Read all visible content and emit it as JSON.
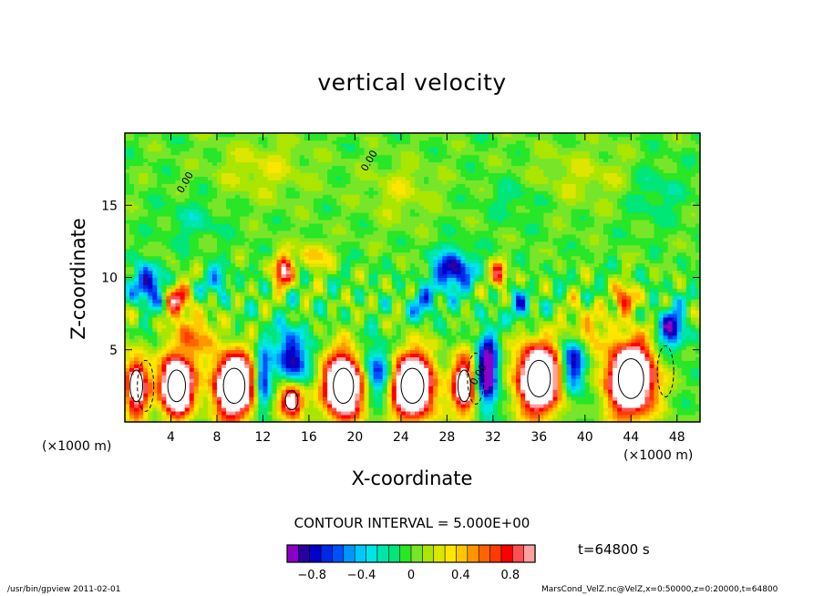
{
  "figure": {
    "title": "vertical velocity",
    "contour_interval": "CONTOUR INTERVAL = 5.000E+00",
    "time_label": "t=64800 s",
    "footer_left": "/usr/bin/gpview  2011-02-01",
    "footer_right": "MarsCond_VelZ.nc@VelZ,x=0:50000,z=0:20000,t=64800"
  },
  "chart_data": {
    "type": "heatmap",
    "title": "vertical velocity",
    "xlabel": "X-coordinate",
    "ylabel": "Z-coordinate",
    "x_unit": "(×1000 m)",
    "y_unit": "(×1000 m)",
    "xlim": [
      0,
      50
    ],
    "ylim": [
      0,
      20
    ],
    "x_ticks": [
      "4",
      "8",
      "12",
      "16",
      "20",
      "24",
      "28",
      "32",
      "36",
      "40",
      "44",
      "48"
    ],
    "y_ticks": [
      "5",
      "10",
      "15"
    ],
    "contour_label": "0.00",
    "colorbar": {
      "ticks": [
        "−0.8",
        "−0.4",
        "0",
        "0.4",
        "0.8"
      ],
      "tick_values": [
        -0.8,
        -0.4,
        0,
        0.4,
        0.8
      ],
      "range": [
        -1.0,
        1.0
      ],
      "colors": [
        "#8b00c8",
        "#2800a0",
        "#0000c8",
        "#0028e6",
        "#0050ff",
        "#0096ff",
        "#00c8ff",
        "#00e6e6",
        "#00e6aa",
        "#00e678",
        "#28e628",
        "#78e628",
        "#aae600",
        "#dce600",
        "#ffe600",
        "#ffc800",
        "#ff9600",
        "#ff6400",
        "#ff3c00",
        "#ff0000",
        "#ff5050",
        "#ffa0a0"
      ]
    }
  }
}
